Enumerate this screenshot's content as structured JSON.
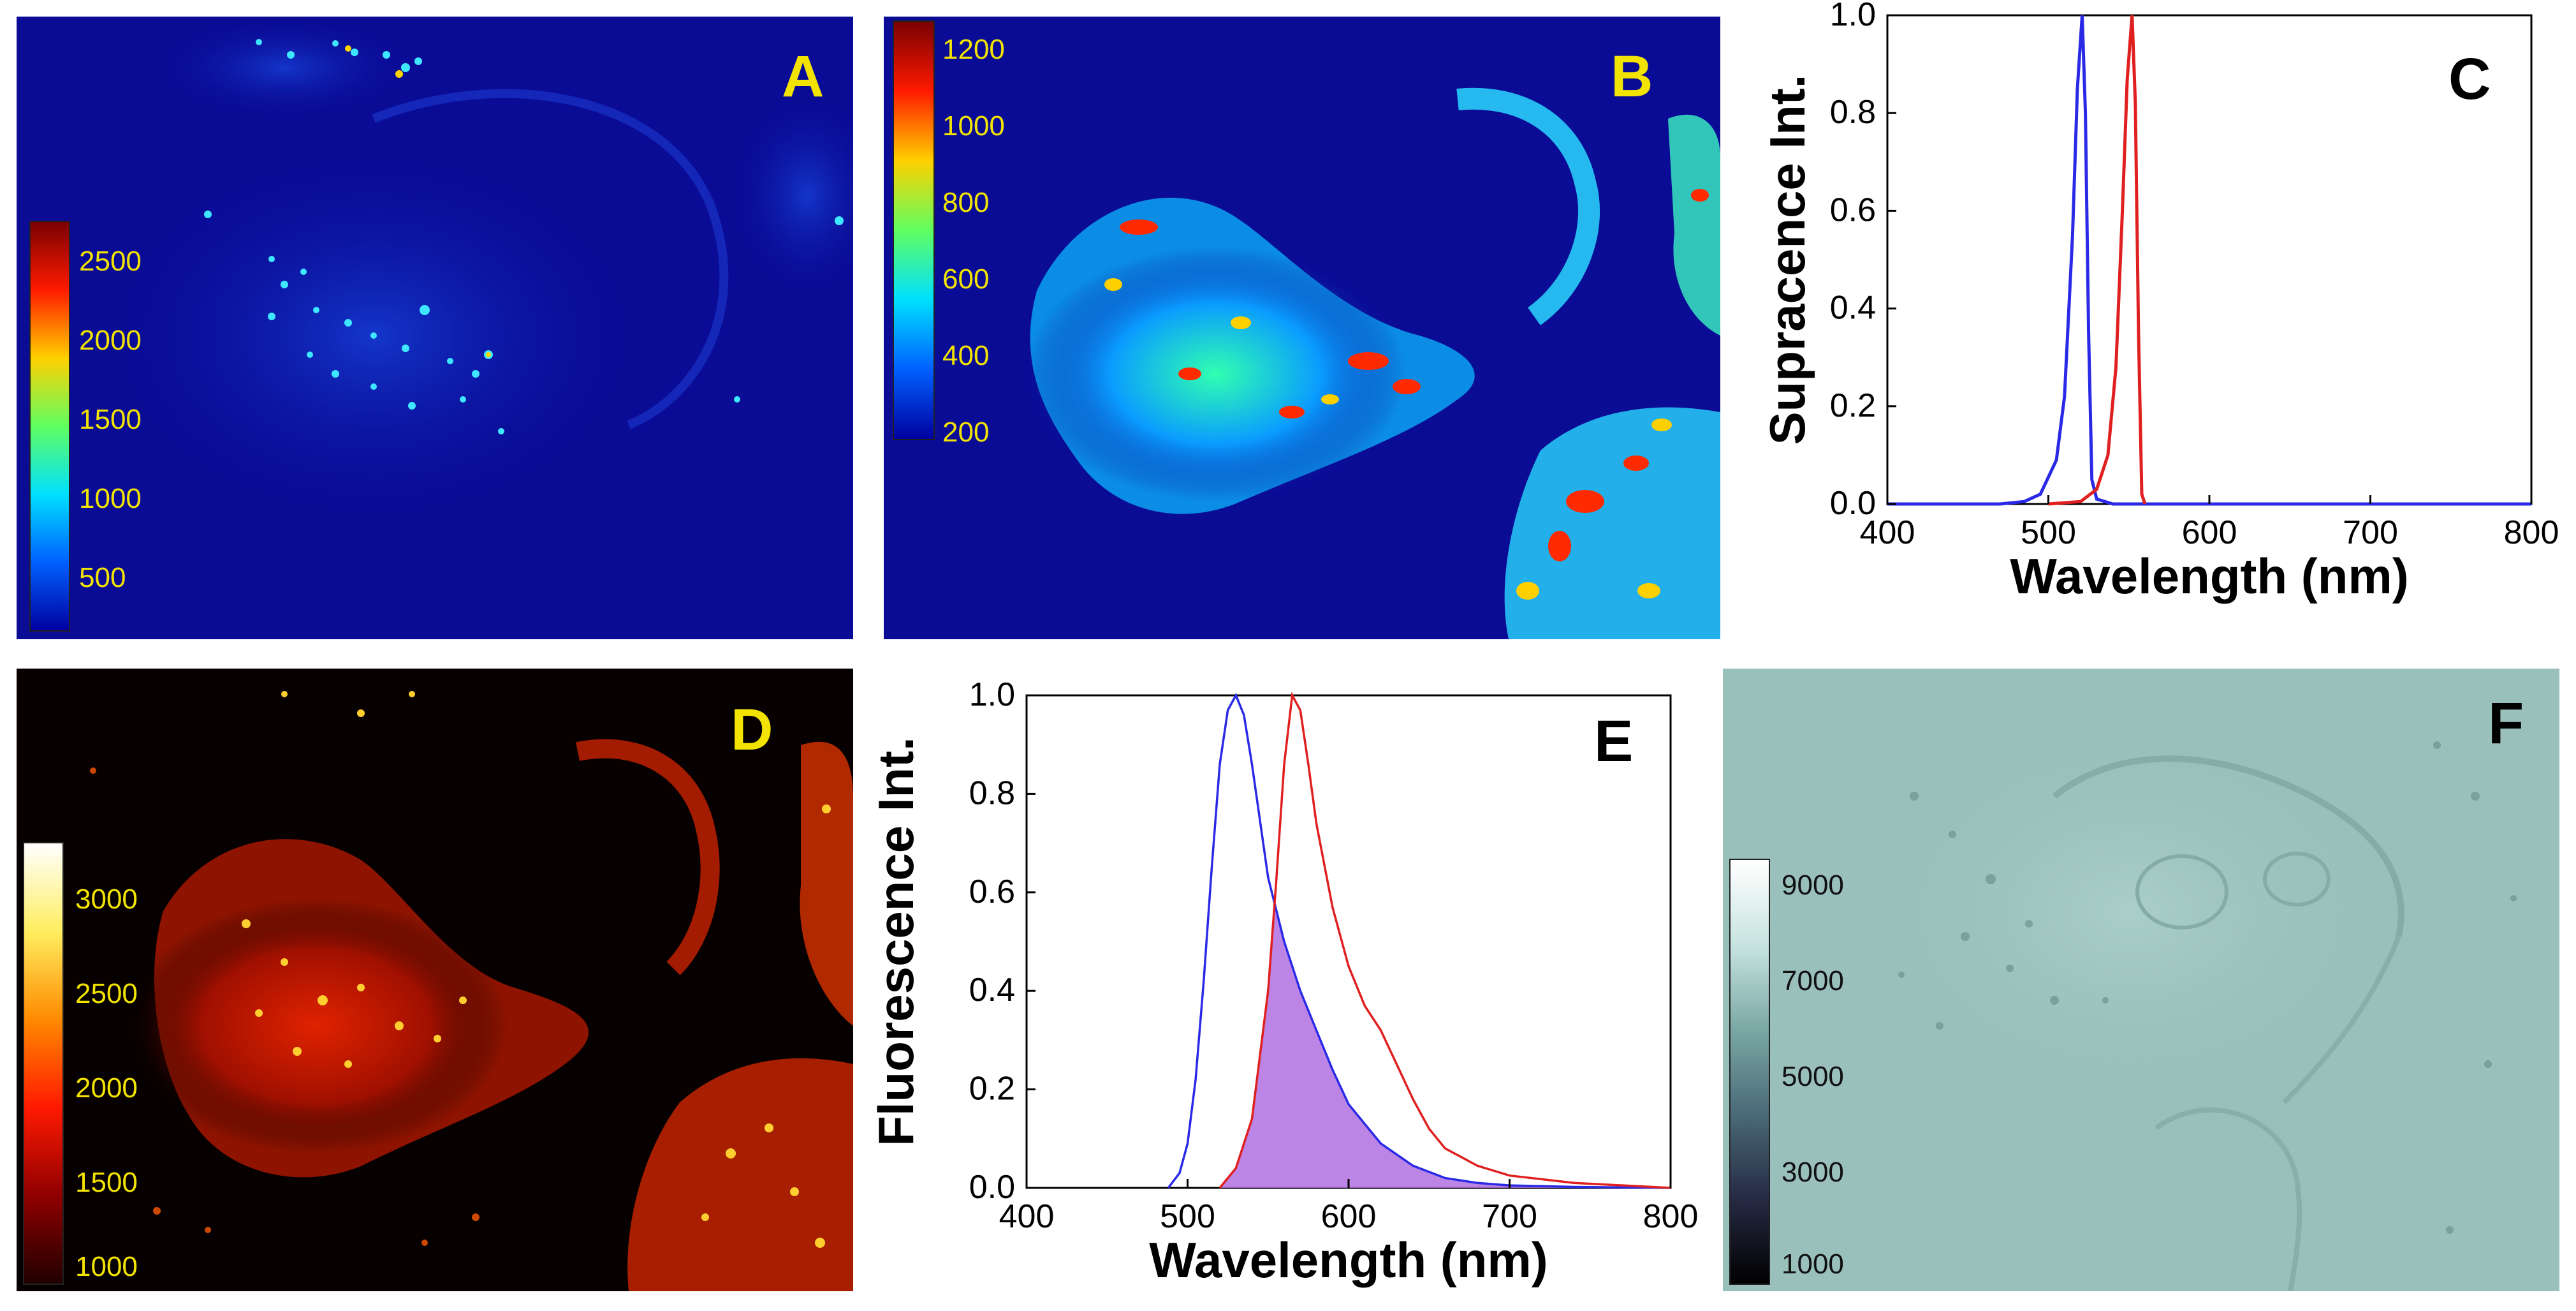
{
  "panels": {
    "a": {
      "label": "A",
      "colorbar_ticks": [
        "2500",
        "2000",
        "1500",
        "1000",
        "500"
      ]
    },
    "b": {
      "label": "B",
      "colorbar_ticks": [
        "1200",
        "1000",
        "800",
        "600",
        "400",
        "200"
      ]
    },
    "c": {
      "label": "C"
    },
    "d": {
      "label": "D",
      "colorbar_ticks": [
        "3000",
        "2500",
        "2000",
        "1500",
        "1000"
      ]
    },
    "e": {
      "label": "E"
    },
    "f": {
      "label": "F",
      "colorbar_ticks": [
        "9000",
        "7000",
        "5000",
        "3000",
        "1000"
      ]
    }
  },
  "colors": {
    "blue_series": "#2a2ae6",
    "red_series": "#e02020",
    "overlap_fill": "#b070e0",
    "label_yellow": "#f2e400"
  },
  "chart_data": [
    {
      "panel": "C",
      "type": "line",
      "title": "",
      "xlabel": "Wavelength (nm)",
      "ylabel": "Supracence Int.",
      "xlim": [
        400,
        800
      ],
      "ylim": [
        0,
        1.0
      ],
      "xticks": [
        "400",
        "500",
        "600",
        "700",
        "800"
      ],
      "yticks": [
        "0.0",
        "0.2",
        "0.4",
        "0.6",
        "0.8",
        "1.0"
      ],
      "series": [
        {
          "name": "blue",
          "color": "#2a2ae6",
          "x": [
            400,
            470,
            485,
            495,
            505,
            510,
            515,
            518,
            521,
            523,
            525,
            527,
            530,
            540,
            600,
            700,
            800
          ],
          "y": [
            0,
            0,
            0.005,
            0.02,
            0.09,
            0.22,
            0.55,
            0.85,
            1.0,
            0.8,
            0.35,
            0.05,
            0.01,
            0,
            0,
            0,
            0
          ]
        },
        {
          "name": "red",
          "color": "#e02020",
          "x": [
            500,
            520,
            530,
            537,
            542,
            546,
            549,
            552,
            554,
            556,
            558,
            560
          ],
          "y": [
            0,
            0.005,
            0.03,
            0.1,
            0.28,
            0.6,
            0.87,
            1.0,
            0.82,
            0.35,
            0.02,
            0
          ]
        }
      ]
    },
    {
      "panel": "E",
      "type": "line",
      "title": "",
      "xlabel": "Wavelength (nm)",
      "ylabel": "Fluorescence Int.",
      "xlim": [
        400,
        800
      ],
      "ylim": [
        0,
        1.0
      ],
      "xticks": [
        "400",
        "500",
        "600",
        "700",
        "800"
      ],
      "yticks": [
        "0.0",
        "0.2",
        "0.4",
        "0.6",
        "0.8",
        "1.0"
      ],
      "series": [
        {
          "name": "blue",
          "color": "#2a2ae6",
          "x": [
            488,
            495,
            500,
            505,
            510,
            515,
            520,
            525,
            530,
            535,
            540,
            550,
            560,
            570,
            580,
            590,
            600,
            620,
            640,
            660,
            680,
            700,
            740,
            800
          ],
          "y": [
            0,
            0.03,
            0.09,
            0.22,
            0.42,
            0.65,
            0.86,
            0.97,
            1.0,
            0.96,
            0.86,
            0.63,
            0.5,
            0.4,
            0.32,
            0.24,
            0.17,
            0.09,
            0.045,
            0.02,
            0.01,
            0.005,
            0.002,
            0
          ]
        },
        {
          "name": "red",
          "color": "#e02020",
          "x": [
            520,
            530,
            540,
            550,
            555,
            560,
            565,
            570,
            575,
            580,
            590,
            600,
            610,
            620,
            630,
            640,
            650,
            660,
            680,
            700,
            740,
            800
          ],
          "y": [
            0,
            0.04,
            0.14,
            0.4,
            0.62,
            0.86,
            1.0,
            0.97,
            0.86,
            0.74,
            0.57,
            0.45,
            0.37,
            0.32,
            0.25,
            0.18,
            0.12,
            0.08,
            0.045,
            0.025,
            0.01,
            0
          ]
        }
      ],
      "overlap_fill": {
        "color": "#b070e0"
      }
    }
  ]
}
